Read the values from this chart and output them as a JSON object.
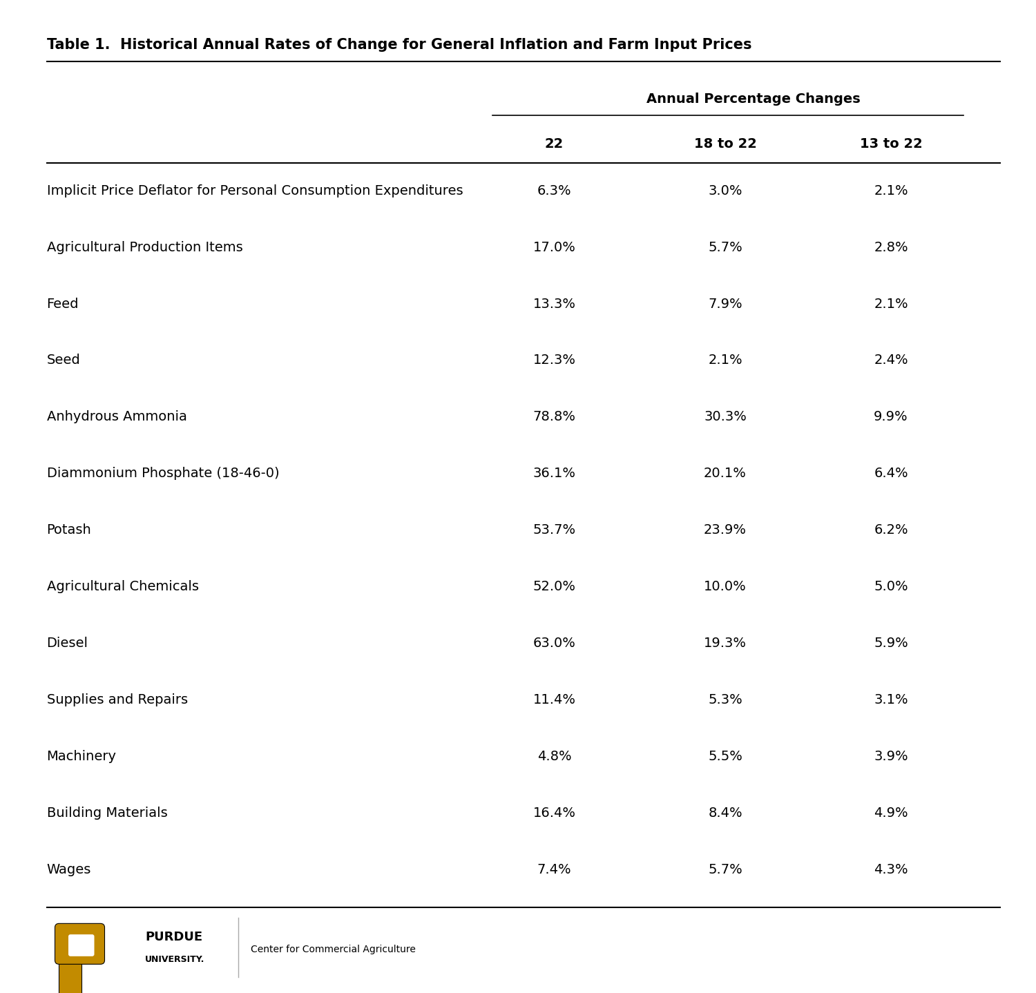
{
  "title": "Table 1.  Historical Annual Rates of Change for General Inflation and Farm Input Prices",
  "header_group": "Annual Percentage Changes",
  "col_headers": [
    "22",
    "18 to 22",
    "13 to 22"
  ],
  "rows": [
    [
      "Implicit Price Deflator for Personal Consumption Expenditures",
      "6.3%",
      "3.0%",
      "2.1%"
    ],
    [
      "Agricultural Production Items",
      "17.0%",
      "5.7%",
      "2.8%"
    ],
    [
      "Feed",
      "13.3%",
      "7.9%",
      "2.1%"
    ],
    [
      "Seed",
      "12.3%",
      "2.1%",
      "2.4%"
    ],
    [
      "Anhydrous Ammonia",
      "78.8%",
      "30.3%",
      "9.9%"
    ],
    [
      "Diammonium Phosphate (18-46-0)",
      "36.1%",
      "20.1%",
      "6.4%"
    ],
    [
      "Potash",
      "53.7%",
      "23.9%",
      "6.2%"
    ],
    [
      "Agricultural Chemicals",
      "52.0%",
      "10.0%",
      "5.0%"
    ],
    [
      "Diesel",
      "63.0%",
      "19.3%",
      "5.9%"
    ],
    [
      "Supplies and Repairs",
      "11.4%",
      "5.3%",
      "3.1%"
    ],
    [
      "Machinery",
      "4.8%",
      "5.5%",
      "3.9%"
    ],
    [
      "Building Materials",
      "16.4%",
      "8.4%",
      "4.9%"
    ],
    [
      "Wages",
      "7.4%",
      "5.7%",
      "4.3%"
    ]
  ],
  "bg_color": "#ffffff",
  "text_color": "#000000",
  "title_fontsize": 15,
  "header_fontsize": 14,
  "cell_fontsize": 14,
  "footer_text": "Center for Commercial Agriculture",
  "purdue_gold": "#c28b00",
  "purdue_black": "#000000"
}
